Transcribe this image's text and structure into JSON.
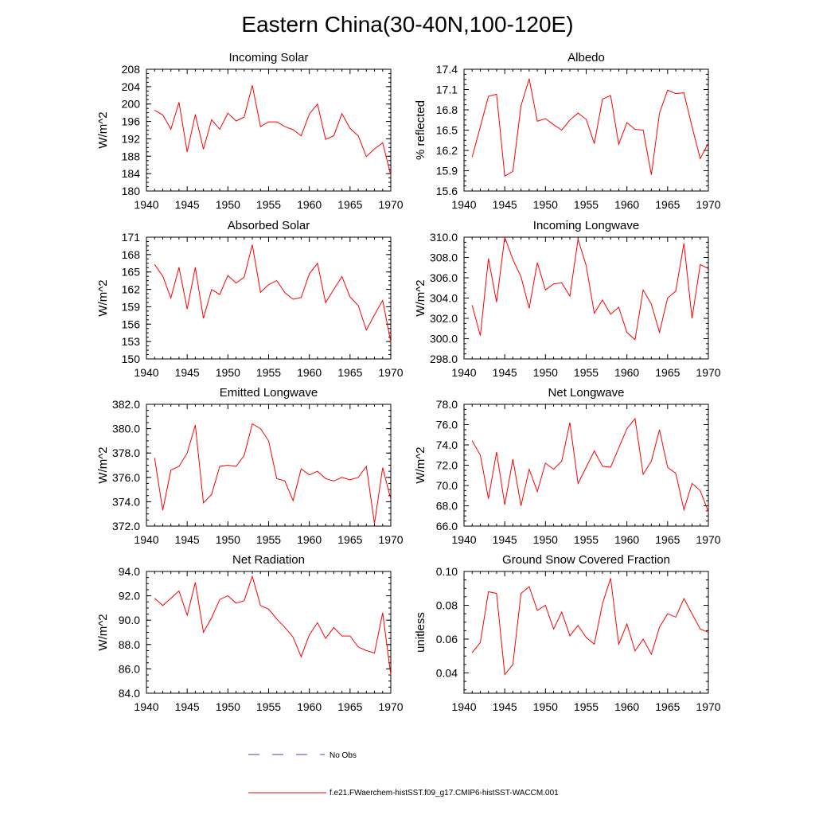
{
  "figure": {
    "title": "Eastern China(30-40N,100-120E)",
    "colors": {
      "model": "#ff0000",
      "obs": "#4040c0",
      "axis": "#000000"
    }
  },
  "legend": [
    {
      "label": "No Obs",
      "style": "dashed",
      "color": "#4040c0"
    },
    {
      "label": "f.e21.FWaerchem-histSST.f09_g17.CMIP6-histSST-WACCM.001",
      "style": "solid",
      "color": "#ff0000"
    }
  ],
  "chart_data": [
    {
      "type": "line",
      "title": "Incoming Solar",
      "ylabel": "W/m^2",
      "xlim": [
        1940,
        1970
      ],
      "ylim": [
        180,
        208
      ],
      "xticks": [
        "1940",
        "1945",
        "1950",
        "1955",
        "1960",
        "1965",
        "1970"
      ],
      "yticks": [
        "180",
        "184",
        "188",
        "192",
        "196",
        "200",
        "204",
        "208"
      ],
      "series": [
        {
          "x": [
            1941,
            1942,
            1943,
            1944,
            1945,
            1946,
            1947,
            1948,
            1949,
            1950,
            1951,
            1952,
            1953,
            1954,
            1955,
            1956,
            1957,
            1958,
            1959,
            1960,
            1961,
            1962,
            1963,
            1964,
            1965,
            1966,
            1967,
            1968,
            1969,
            1970
          ],
          "values": [
            198.6,
            197.5,
            194.2,
            200.4,
            189.0,
            197.6,
            189.6,
            196.4,
            194.2,
            197.9,
            196.1,
            197.0,
            204.3,
            194.8,
            195.9,
            195.9,
            194.8,
            194.1,
            192.7,
            197.7,
            200.0,
            191.9,
            192.7,
            197.8,
            194.4,
            192.7,
            187.9,
            189.7,
            191.1,
            183.6
          ]
        }
      ]
    },
    {
      "type": "line",
      "title": "Albedo",
      "ylabel": "% reflected",
      "xlim": [
        1940,
        1970
      ],
      "ylim": [
        15.6,
        17.4
      ],
      "xticks": [
        "1940",
        "1945",
        "1950",
        "1955",
        "1960",
        "1965",
        "1970"
      ],
      "yticks": [
        "15.6",
        "15.9",
        "16.2",
        "16.5",
        "16.8",
        "17.1",
        "17.4"
      ],
      "series": [
        {
          "x": [
            1941,
            1942,
            1943,
            1944,
            1945,
            1946,
            1947,
            1948,
            1949,
            1950,
            1951,
            1952,
            1953,
            1954,
            1955,
            1956,
            1957,
            1958,
            1959,
            1960,
            1961,
            1962,
            1963,
            1964,
            1965,
            1966,
            1967,
            1968,
            1969,
            1970
          ],
          "values": [
            16.1,
            16.55,
            17.0,
            17.03,
            15.82,
            15.89,
            16.86,
            17.26,
            16.63,
            16.67,
            16.58,
            16.5,
            16.65,
            16.75,
            16.66,
            16.3,
            16.96,
            17.01,
            16.29,
            16.61,
            16.51,
            16.5,
            15.84,
            16.75,
            17.09,
            17.04,
            17.05,
            16.55,
            16.08,
            16.31
          ]
        }
      ]
    },
    {
      "type": "line",
      "title": "Absorbed Solar",
      "ylabel": "W/m^2",
      "xlim": [
        1940,
        1970
      ],
      "ylim": [
        150,
        171
      ],
      "xticks": [
        "1940",
        "1945",
        "1950",
        "1955",
        "1960",
        "1965",
        "1970"
      ],
      "yticks": [
        "150",
        "153",
        "156",
        "159",
        "162",
        "165",
        "168",
        "171"
      ],
      "series": [
        {
          "x": [
            1941,
            1942,
            1943,
            1944,
            1945,
            1946,
            1947,
            1948,
            1949,
            1950,
            1951,
            1952,
            1953,
            1954,
            1955,
            1956,
            1957,
            1958,
            1959,
            1960,
            1961,
            1962,
            1963,
            1964,
            1965,
            1966,
            1967,
            1968,
            1969,
            1970
          ],
          "values": [
            166.3,
            164.3,
            160.5,
            165.8,
            158.6,
            165.8,
            157.0,
            162.0,
            161.1,
            164.4,
            163.1,
            164.1,
            169.7,
            161.5,
            162.8,
            163.5,
            161.4,
            160.3,
            160.6,
            164.7,
            166.5,
            159.7,
            162.0,
            164.2,
            160.7,
            159.2,
            155.0,
            157.6,
            160.1,
            152.9
          ]
        }
      ]
    },
    {
      "type": "line",
      "title": "Incoming Longwave",
      "ylabel": "W/m^2",
      "xlim": [
        1940,
        1970
      ],
      "ylim": [
        298.0,
        310.0
      ],
      "xticks": [
        "1940",
        "1945",
        "1950",
        "1955",
        "1960",
        "1965",
        "1970"
      ],
      "yticks": [
        "298.0",
        "300.0",
        "302.0",
        "304.0",
        "306.0",
        "308.0",
        "310.0"
      ],
      "series": [
        {
          "x": [
            1941,
            1942,
            1943,
            1944,
            1945,
            1946,
            1947,
            1948,
            1949,
            1950,
            1951,
            1952,
            1953,
            1954,
            1955,
            1956,
            1957,
            1958,
            1959,
            1960,
            1961,
            1962,
            1963,
            1964,
            1965,
            1966,
            1967,
            1968,
            1969,
            1970
          ],
          "values": [
            303.3,
            300.3,
            307.9,
            303.6,
            310.0,
            307.8,
            306.1,
            303.0,
            307.5,
            304.8,
            305.4,
            305.5,
            304.2,
            309.8,
            307.2,
            302.5,
            303.8,
            302.4,
            303.1,
            300.6,
            299.9,
            304.8,
            303.4,
            300.6,
            304.0,
            304.7,
            309.4,
            302.0,
            307.3,
            306.9
          ]
        }
      ]
    },
    {
      "type": "line",
      "title": "Emitted Longwave",
      "ylabel": "W/m^2",
      "xlim": [
        1940,
        1970
      ],
      "ylim": [
        372.0,
        382.0
      ],
      "xticks": [
        "1940",
        "1945",
        "1950",
        "1955",
        "1960",
        "1965",
        "1970"
      ],
      "yticks": [
        "372.0",
        "374.0",
        "376.0",
        "378.0",
        "380.0",
        "382.0"
      ],
      "series": [
        {
          "x": [
            1941,
            1942,
            1943,
            1944,
            1945,
            1946,
            1947,
            1948,
            1949,
            1950,
            1951,
            1952,
            1953,
            1954,
            1955,
            1956,
            1957,
            1958,
            1959,
            1960,
            1961,
            1962,
            1963,
            1964,
            1965,
            1966,
            1967,
            1968,
            1969,
            1970
          ],
          "values": [
            377.6,
            373.3,
            376.6,
            376.9,
            378.0,
            380.3,
            373.9,
            374.6,
            376.9,
            377.0,
            376.9,
            377.8,
            380.4,
            380.0,
            379.0,
            375.9,
            375.7,
            374.1,
            376.7,
            376.2,
            376.5,
            375.9,
            375.7,
            376.0,
            375.8,
            376.0,
            376.9,
            372.2,
            376.8,
            374.2
          ]
        }
      ]
    },
    {
      "type": "line",
      "title": "Net Longwave",
      "ylabel": "W/m^2",
      "xlim": [
        1940,
        1970
      ],
      "ylim": [
        66.0,
        78.0
      ],
      "xticks": [
        "1940",
        "1945",
        "1950",
        "1955",
        "1960",
        "1965",
        "1970"
      ],
      "yticks": [
        "66.0",
        "68.0",
        "70.0",
        "72.0",
        "74.0",
        "76.0",
        "78.0"
      ],
      "series": [
        {
          "x": [
            1941,
            1942,
            1943,
            1944,
            1945,
            1946,
            1947,
            1948,
            1949,
            1950,
            1951,
            1952,
            1953,
            1954,
            1955,
            1956,
            1957,
            1958,
            1959,
            1960,
            1961,
            1962,
            1963,
            1964,
            1965,
            1966,
            1967,
            1968,
            1969,
            1970
          ],
          "values": [
            74.4,
            73.0,
            68.7,
            73.3,
            68.1,
            72.6,
            68.0,
            71.6,
            69.4,
            72.2,
            71.6,
            72.4,
            76.2,
            70.2,
            71.8,
            73.4,
            71.9,
            71.8,
            73.7,
            75.6,
            76.6,
            71.1,
            72.4,
            75.5,
            71.8,
            71.2,
            67.6,
            70.2,
            69.5,
            67.4
          ]
        }
      ]
    },
    {
      "type": "line",
      "title": "Net Radiation",
      "ylabel": "W/m^2",
      "xlim": [
        1940,
        1970
      ],
      "ylim": [
        84.0,
        94.0
      ],
      "xticks": [
        "1940",
        "1945",
        "1950",
        "1955",
        "1960",
        "1965",
        "1970"
      ],
      "yticks": [
        "84.0",
        "86.0",
        "88.0",
        "90.0",
        "92.0",
        "94.0"
      ],
      "series": [
        {
          "x": [
            1941,
            1942,
            1943,
            1944,
            1945,
            1946,
            1947,
            1948,
            1949,
            1950,
            1951,
            1952,
            1953,
            1954,
            1955,
            1956,
            1957,
            1958,
            1959,
            1960,
            1961,
            1962,
            1963,
            1964,
            1965,
            1966,
            1967,
            1968,
            1969,
            1970
          ],
          "values": [
            91.8,
            91.2,
            91.8,
            92.4,
            90.4,
            93.1,
            89.0,
            90.2,
            91.7,
            92.0,
            91.4,
            91.6,
            93.6,
            91.2,
            90.9,
            90.1,
            89.4,
            88.6,
            87.0,
            88.8,
            89.8,
            88.5,
            89.4,
            88.7,
            88.7,
            87.8,
            87.5,
            87.3,
            90.6,
            85.5
          ]
        }
      ]
    },
    {
      "type": "line",
      "title": "Ground Snow Covered Fraction",
      "ylabel": "unitless",
      "xlim": [
        1940,
        1970
      ],
      "ylim": [
        0.028,
        0.1
      ],
      "xticks": [
        "1940",
        "1945",
        "1950",
        "1955",
        "1960",
        "1965",
        "1970"
      ],
      "yticks": [
        "0.04",
        "0.06",
        "0.08",
        "0.10"
      ],
      "ytick_values": [
        0.04,
        0.06,
        0.08,
        0.1
      ],
      "series": [
        {
          "x": [
            1941,
            1942,
            1943,
            1944,
            1945,
            1946,
            1947,
            1948,
            1949,
            1950,
            1951,
            1952,
            1953,
            1954,
            1955,
            1956,
            1957,
            1958,
            1959,
            1960,
            1961,
            1962,
            1963,
            1964,
            1965,
            1966,
            1967,
            1968,
            1969,
            1970
          ],
          "values": [
            0.052,
            0.058,
            0.088,
            0.087,
            0.039,
            0.045,
            0.087,
            0.091,
            0.077,
            0.08,
            0.066,
            0.076,
            0.062,
            0.068,
            0.061,
            0.057,
            0.081,
            0.096,
            0.057,
            0.069,
            0.053,
            0.06,
            0.051,
            0.067,
            0.075,
            0.073,
            0.084,
            0.075,
            0.066,
            0.064
          ]
        }
      ]
    }
  ]
}
